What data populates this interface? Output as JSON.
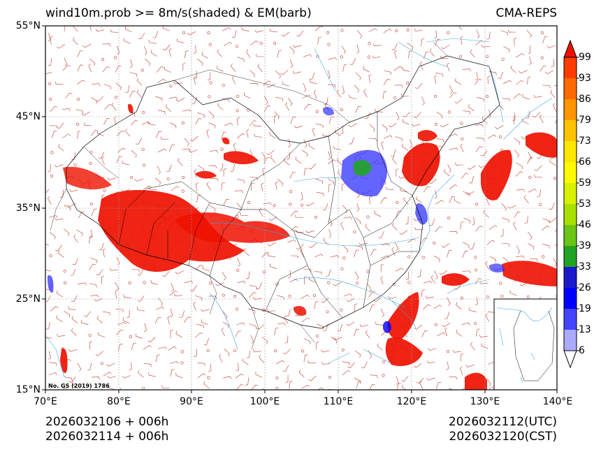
{
  "header": {
    "title": "wind10m.prob >= 8m/s(shaded) & EM(barb)",
    "model": "CMA-REPS"
  },
  "axes": {
    "lat_labels": [
      "55°N",
      "45°N",
      "35°N",
      "25°N",
      "15°N"
    ],
    "lon_labels": [
      "70°E",
      "80°E",
      "90°E",
      "100°E",
      "110°E",
      "120°E",
      "130°E",
      "140°E"
    ],
    "lat_values": [
      55,
      45,
      35,
      25,
      15
    ],
    "lon_values": [
      70,
      80,
      90,
      100,
      110,
      120,
      130,
      140
    ]
  },
  "colorbar": {
    "levels": [
      "99",
      "93",
      "86",
      "79",
      "73",
      "66",
      "59",
      "53",
      "46",
      "39",
      "33",
      "26",
      "19",
      "13",
      "6"
    ],
    "colors": [
      "#ee1100",
      "#ff3c00",
      "#ff6a00",
      "#ff9500",
      "#ffc300",
      "#ffe600",
      "#fff900",
      "#d9f000",
      "#a8e000",
      "#6cc417",
      "#22a322",
      "#1a1acc",
      "#0000ff",
      "#4444ff",
      "#aaaaff",
      "#ffffff"
    ]
  },
  "map": {
    "review_number": "No. GS (2019) 1786"
  },
  "footer": {
    "init_utc": "2026032106  +  006h",
    "init_cst": "2026032114  +  006h",
    "valid_utc": "2026032112(UTC)",
    "valid_cst": "2026032120(CST)"
  }
}
